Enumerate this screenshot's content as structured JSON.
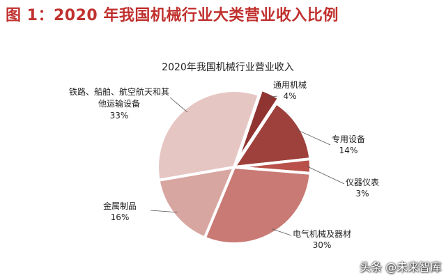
{
  "figure_title": "图 1：2020 年我国机械行业大类营业收入比例",
  "watermark": "头条 @未来智库",
  "colors": {
    "title": "#c0312e",
    "leader": "#555555"
  },
  "chart_data": {
    "type": "pie",
    "title": "2020年我国机械行业营业收入",
    "slices": [
      {
        "label": "通用机械",
        "value": 4,
        "pct_text": "4%",
        "color": "#8f3431",
        "explode": 8
      },
      {
        "label": "专用设备",
        "value": 14,
        "pct_text": "14%",
        "color": "#9e403b",
        "explode": 0
      },
      {
        "label": "仪器仪表",
        "value": 3,
        "pct_text": "3%",
        "color": "#b9504a",
        "explode": 0
      },
      {
        "label": "电气机械及器材",
        "value": 30,
        "pct_text": "30%",
        "color": "#c97a74",
        "explode": 0
      },
      {
        "label": "金属制品",
        "value": 16,
        "pct_text": "16%",
        "color": "#d8a6a1",
        "explode": 0
      },
      {
        "label": "铁路、船舶、航空航天和其他运输设备",
        "value": 33,
        "pct_text": "33%",
        "color": "#e6c6c3",
        "explode": 0
      }
    ]
  }
}
